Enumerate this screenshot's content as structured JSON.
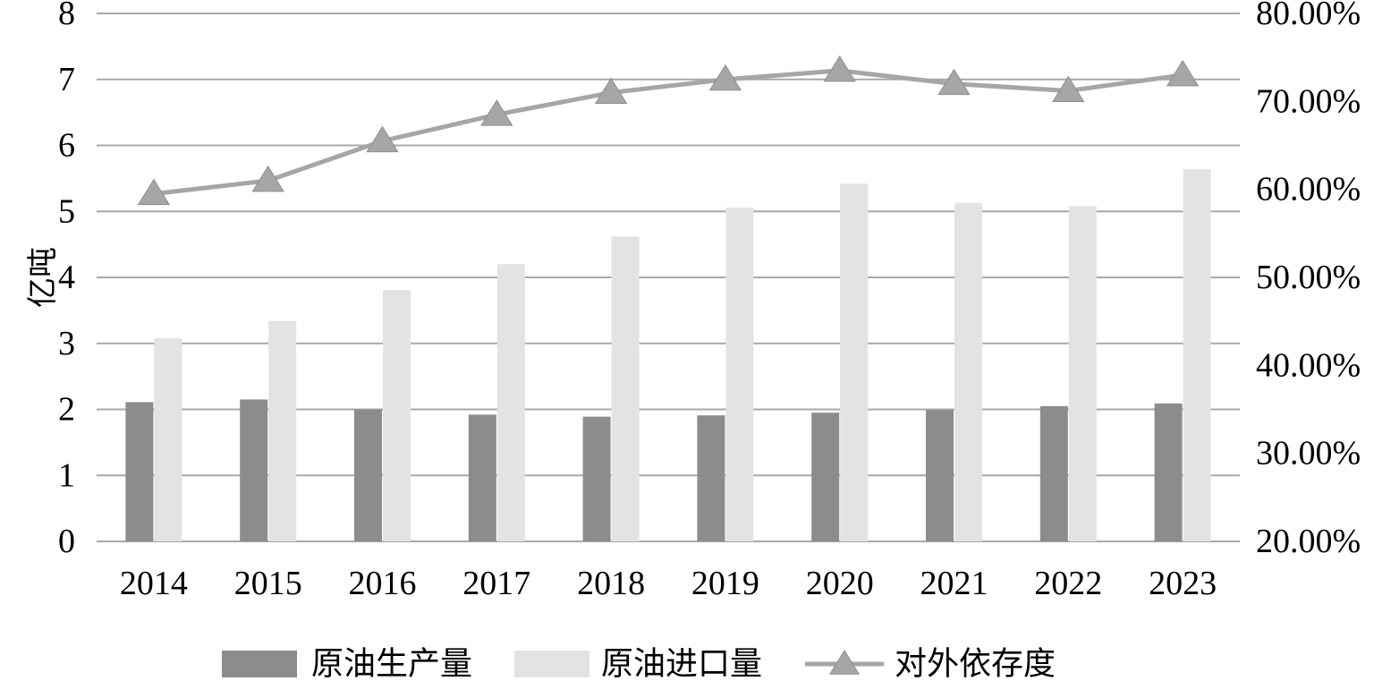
{
  "chart_data": {
    "type": "bar",
    "categories": [
      "2014",
      "2015",
      "2016",
      "2017",
      "2018",
      "2019",
      "2020",
      "2021",
      "2022",
      "2023"
    ],
    "series": [
      {
        "name": "原油生产量",
        "type": "bar",
        "axis": "left",
        "color": "#8c8c8c",
        "values": [
          2.11,
          2.15,
          2.0,
          1.92,
          1.89,
          1.91,
          1.95,
          1.99,
          2.05,
          2.09
        ]
      },
      {
        "name": "原油进口量",
        "type": "bar",
        "axis": "left",
        "color": "#e3e3e3",
        "values": [
          3.08,
          3.34,
          3.81,
          4.2,
          4.62,
          5.06,
          5.42,
          5.13,
          5.08,
          5.64
        ]
      },
      {
        "name": "对外依存度",
        "type": "line",
        "axis": "right",
        "color": "#a6a6a6",
        "marker": "triangle",
        "values": [
          59.5,
          61.0,
          65.5,
          68.5,
          71.0,
          72.5,
          73.5,
          72.0,
          71.2,
          73.0
        ]
      }
    ],
    "ylabel": "亿吨",
    "ylim": [
      0,
      8
    ],
    "yticks": [
      "0",
      "1",
      "2",
      "3",
      "4",
      "5",
      "6",
      "7",
      "8"
    ],
    "y2lim": [
      20,
      80
    ],
    "y2ticks": [
      "20.00%",
      "30.00%",
      "40.00%",
      "50.00%",
      "60.00%",
      "70.00%",
      "80.00%"
    ],
    "grid": true,
    "legend_position": "bottom"
  }
}
